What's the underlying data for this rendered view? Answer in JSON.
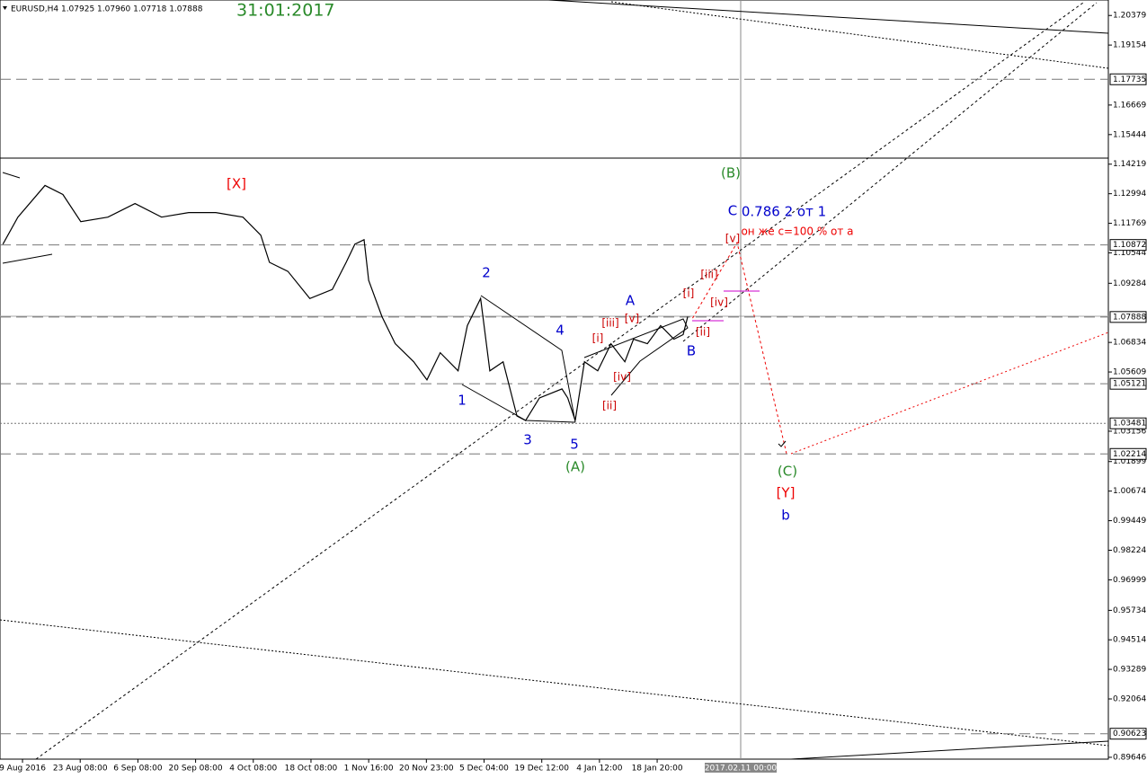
{
  "chart_data": {
    "type": "line",
    "title": "EURUSD,H4 1.07925 1.07960 1.07718 1.07888",
    "subtitle": "31:01:2017",
    "cursor_label": "2017.02.11 00:00",
    "xlim": [
      -0.39,
      18.82
    ],
    "xticks": [
      {
        "value": 0,
        "label": "9 Aug 2016"
      },
      {
        "value": 1,
        "label": "23 Aug 08:00"
      },
      {
        "value": 2,
        "label": "6 Sep 08:00"
      },
      {
        "value": 3,
        "label": "20 Sep 08:00"
      },
      {
        "value": 4,
        "label": "4 Oct 08:00"
      },
      {
        "value": 5,
        "label": "18 Oct 08:00"
      },
      {
        "value": 6,
        "label": "1 Nov 16:00"
      },
      {
        "value": 7,
        "label": "20 Nov 23:00"
      },
      {
        "value": 8,
        "label": "5 Dec 04:00"
      },
      {
        "value": 9,
        "label": "19 Dec 12:00"
      },
      {
        "value": 10,
        "label": "4 Jan 12:00"
      },
      {
        "value": 11,
        "label": "18 Jan 20:00"
      }
    ],
    "ylim": [
      0.8957,
      1.2102
    ],
    "yticks": [
      1.20379,
      1.19154,
      1.16669,
      1.15444,
      1.14219,
      1.12994,
      1.11769,
      1.10544,
      1.09284,
      1.06834,
      1.05609,
      1.03156,
      1.01899,
      1.00674,
      0.99449,
      0.98224,
      0.96999,
      0.95734,
      0.94514,
      0.93289,
      0.92064,
      0.89646
    ],
    "levels": [
      1.17735,
      1.10872,
      1.07888,
      1.05121,
      1.03481,
      1.02214,
      0.90623
    ],
    "series": [
      {
        "name": "EURUSD",
        "color": "#000000",
        "x": [
          -0.34,
          -0.08,
          0.39,
          0.7,
          1.01,
          1.48,
          1.95,
          2.41,
          2.88,
          3.35,
          3.82,
          4.13,
          4.28,
          4.6,
          4.98,
          5.37,
          5.61,
          5.76,
          5.92,
          6.0,
          6.23,
          6.46,
          6.78,
          7.01,
          7.24,
          7.55,
          7.71,
          7.94,
          8.1,
          8.33,
          8.57,
          8.72,
          8.96,
          9.35,
          9.45,
          9.58,
          9.74,
          9.97,
          10.2,
          10.44,
          10.59,
          10.83,
          11.06,
          11.29,
          11.45,
          11.53
        ],
        "values": [
          1.10902,
          1.12025,
          1.13337,
          1.12962,
          1.11838,
          1.12025,
          1.12587,
          1.12025,
          1.12213,
          1.12213,
          1.12025,
          1.11276,
          1.10152,
          1.09778,
          1.08654,
          1.09029,
          1.10152,
          1.10902,
          1.11089,
          1.09403,
          1.07905,
          1.06781,
          1.06032,
          1.05283,
          1.06407,
          1.05657,
          1.0753,
          1.08654,
          1.05657,
          1.06032,
          1.03784,
          1.03597,
          1.04533,
          1.04908,
          1.04533,
          1.03597,
          1.06032,
          1.05657,
          1.06781,
          1.06032,
          1.06968,
          1.06781,
          1.0753,
          1.06968,
          1.07156,
          1.07905
        ]
      }
    ],
    "annotations": [
      "[X]",
      "(B)",
      "C",
      "0.786 2 от 1",
      "он же с=100 % от а",
      "[v]",
      "[iii]",
      "[i]",
      "[iv]",
      "[ii]",
      "B",
      "A",
      "[iii]",
      "[v]",
      "[i]",
      "[iv]",
      "[ii]",
      "2",
      "4",
      "1",
      "3",
      "5",
      "(A)",
      "(C)",
      "[Y]",
      "b"
    ]
  }
}
